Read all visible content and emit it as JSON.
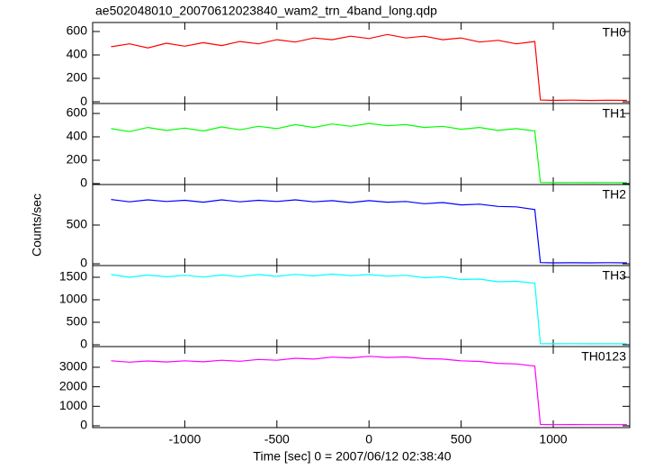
{
  "chart_data": [
    {
      "type": "line",
      "title": "ae502048010_20070612023840_wam2_trn_4band_long.qdp",
      "x": [
        -1400,
        -1300,
        -1200,
        -1100,
        -1000,
        -900,
        -800,
        -700,
        -600,
        -500,
        -400,
        -300,
        -200,
        -100,
        0,
        100,
        200,
        300,
        400,
        500,
        600,
        700,
        800,
        900,
        930,
        1000,
        1100,
        1200,
        1300,
        1400
      ],
      "series": [
        {
          "name": "TH0",
          "color": "#ff0000",
          "values": [
            470,
            495,
            460,
            500,
            475,
            505,
            480,
            515,
            495,
            530,
            510,
            545,
            530,
            560,
            540,
            575,
            545,
            560,
            530,
            545,
            510,
            525,
            495,
            515,
            15,
            12,
            14,
            11,
            13,
            12
          ]
        }
      ],
      "xlim": [
        -1500,
        1415
      ],
      "xticks": [
        -1000,
        -500,
        0,
        500,
        1000
      ],
      "ylim": [
        -15,
        677
      ],
      "yticks": [
        0,
        200,
        400,
        600
      ]
    },
    {
      "type": "line",
      "x": [
        -1400,
        -1300,
        -1200,
        -1100,
        -1000,
        -900,
        -800,
        -700,
        -600,
        -500,
        -400,
        -300,
        -200,
        -100,
        0,
        100,
        200,
        300,
        400,
        500,
        600,
        700,
        800,
        900,
        930,
        1000,
        1100,
        1200,
        1300,
        1400
      ],
      "series": [
        {
          "name": "TH1",
          "color": "#00ff00",
          "values": [
            470,
            445,
            480,
            455,
            475,
            450,
            485,
            460,
            490,
            470,
            505,
            480,
            510,
            490,
            515,
            495,
            505,
            480,
            490,
            465,
            480,
            455,
            470,
            450,
            10,
            8,
            9,
            8,
            9,
            8
          ]
        }
      ],
      "xlim": [
        -1500,
        1415
      ],
      "xticks": [
        -1000,
        -500,
        0,
        500,
        1000
      ],
      "ylim": [
        -8,
        685
      ],
      "yticks": [
        0,
        200,
        400,
        600
      ]
    },
    {
      "type": "line",
      "ylabel": "Counts/sec",
      "x": [
        -1400,
        -1300,
        -1200,
        -1100,
        -1000,
        -900,
        -800,
        -700,
        -600,
        -500,
        -400,
        -300,
        -200,
        -100,
        0,
        100,
        200,
        300,
        400,
        500,
        600,
        700,
        800,
        900,
        930,
        1000,
        1100,
        1200,
        1300,
        1400
      ],
      "series": [
        {
          "name": "TH2",
          "color": "#0000ff",
          "values": [
            830,
            800,
            825,
            805,
            820,
            795,
            825,
            800,
            820,
            805,
            825,
            800,
            815,
            790,
            815,
            795,
            805,
            775,
            790,
            760,
            770,
            740,
            735,
            700,
            15,
            12,
            13,
            12,
            14,
            12
          ]
        }
      ],
      "xlim": [
        -1500,
        1415
      ],
      "xticks": [
        -1000,
        -500,
        0,
        500,
        1000
      ],
      "ylim": [
        -23,
        1023
      ],
      "yticks": [
        0,
        500
      ]
    },
    {
      "type": "line",
      "x": [
        -1400,
        -1300,
        -1200,
        -1100,
        -1000,
        -900,
        -800,
        -700,
        -600,
        -500,
        -400,
        -300,
        -200,
        -100,
        0,
        100,
        200,
        300,
        400,
        500,
        600,
        700,
        800,
        900,
        930,
        1000,
        1100,
        1200,
        1300,
        1400
      ],
      "series": [
        {
          "name": "TH3",
          "color": "#00ffff",
          "values": [
            1560,
            1500,
            1550,
            1510,
            1545,
            1505,
            1550,
            1515,
            1560,
            1520,
            1565,
            1530,
            1570,
            1535,
            1560,
            1525,
            1545,
            1490,
            1510,
            1450,
            1460,
            1400,
            1410,
            1370,
            25,
            22,
            24,
            21,
            23,
            22
          ]
        }
      ],
      "xlim": [
        -1500,
        1415
      ],
      "xticks": [
        -1000,
        -500,
        0,
        500,
        1000
      ],
      "ylim": [
        -40,
        1760
      ],
      "yticks": [
        0,
        500,
        1000,
        1500
      ]
    },
    {
      "type": "line",
      "xlabel": "Time [sec] 0 = 2007/06/12 02:38:40",
      "x": [
        -1400,
        -1300,
        -1200,
        -1100,
        -1000,
        -900,
        -800,
        -700,
        -600,
        -500,
        -400,
        -300,
        -200,
        -100,
        0,
        100,
        200,
        300,
        400,
        500,
        600,
        700,
        800,
        900,
        930,
        1000,
        1100,
        1200,
        1300,
        1400
      ],
      "series": [
        {
          "name": "TH0123",
          "color": "#ff00ff",
          "values": [
            3330,
            3260,
            3320,
            3270,
            3330,
            3280,
            3360,
            3310,
            3400,
            3360,
            3460,
            3420,
            3520,
            3480,
            3560,
            3500,
            3530,
            3440,
            3420,
            3330,
            3300,
            3200,
            3170,
            3060,
            70,
            60,
            65,
            58,
            62,
            60
          ]
        }
      ],
      "xlim": [
        -1500,
        1415
      ],
      "xticks": [
        -1000,
        -500,
        0,
        500,
        1000
      ],
      "ylim": [
        -92,
        4060
      ],
      "yticks": [
        0,
        1000,
        2000,
        3000
      ]
    }
  ]
}
